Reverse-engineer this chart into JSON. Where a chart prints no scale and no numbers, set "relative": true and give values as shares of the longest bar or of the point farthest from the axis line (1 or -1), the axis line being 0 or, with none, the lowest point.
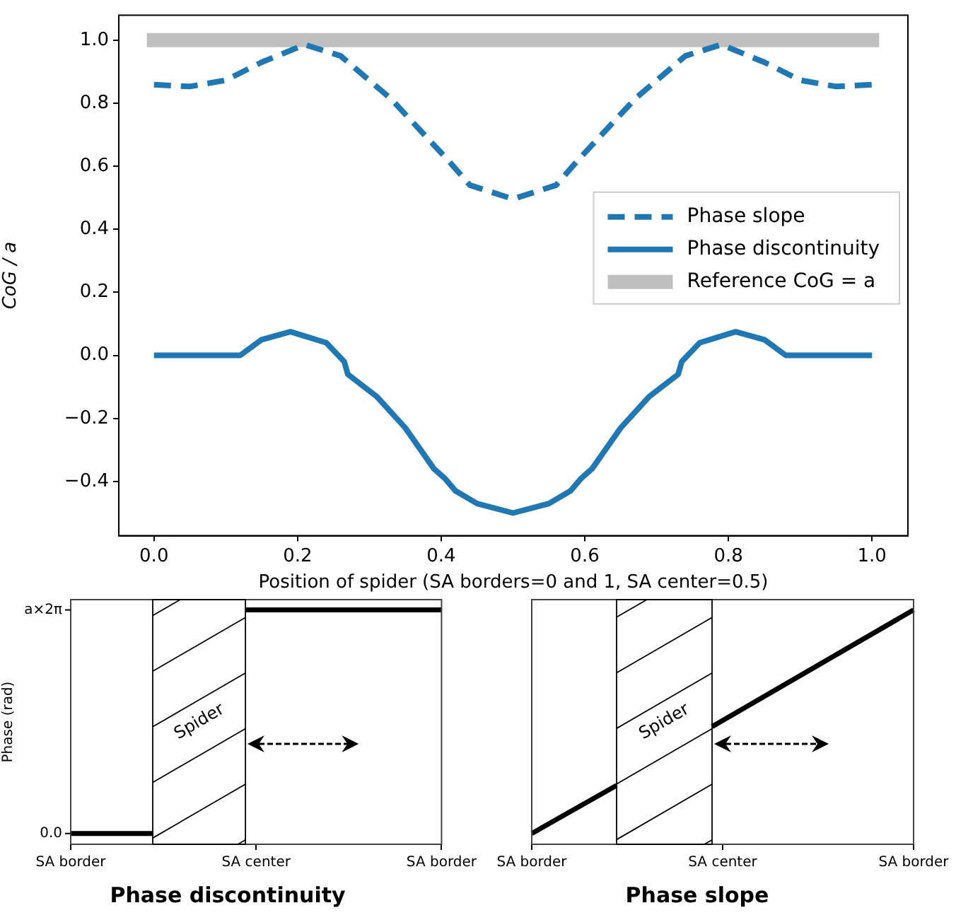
{
  "chart_data": [
    {
      "type": "line",
      "xlabel": "Position of spider (SA borders=0 and 1, SA center=0.5)",
      "ylabel": "CoG / a",
      "xlim": [
        -0.049,
        1.05
      ],
      "ylim": [
        -0.572,
        1.079
      ],
      "xticks": [
        {
          "value": 0,
          "label": "0.0"
        },
        0.2,
        0.4,
        0.6,
        0.8,
        {
          "value": 1,
          "label": "1.0"
        }
      ],
      "yticks": [
        {
          "value": -0.4,
          "label": "−0.4"
        },
        {
          "value": -0.2,
          "label": "−0.2"
        },
        {
          "value": 0,
          "label": "0.0"
        },
        0.2,
        0.4,
        0.6,
        0.8,
        {
          "value": 1,
          "label": "1.0"
        }
      ],
      "grid": false,
      "legend": "right",
      "series": [
        {
          "name": "Phase slope",
          "color": "#1f77b4",
          "line_style": "dashed",
          "x": [
            0,
            0.05,
            0.1,
            0.15,
            0.21,
            0.26,
            0.33,
            0.41,
            0.44,
            0.5,
            0.56,
            0.59,
            0.67,
            0.74,
            0.79,
            0.85,
            0.9,
            0.95,
            1
          ],
          "values": [
            0.859,
            0.853,
            0.873,
            0.93,
            0.986,
            0.95,
            0.814,
            0.618,
            0.54,
            0.496,
            0.54,
            0.618,
            0.814,
            0.95,
            0.986,
            0.93,
            0.873,
            0.853,
            0.859
          ]
        },
        {
          "name": "Phase discontinuity",
          "color": "#1f77b4",
          "line_style": "solid",
          "x": [
            0,
            0.12,
            0.15,
            0.19,
            0.24,
            0.265,
            0.27,
            0.31,
            0.35,
            0.39,
            0.405,
            0.42,
            0.45,
            0.5,
            0.55,
            0.58,
            0.595,
            0.61,
            0.65,
            0.69,
            0.73,
            0.735,
            0.76,
            0.81,
            0.85,
            0.88,
            1
          ],
          "values": [
            0,
            0,
            0.05,
            0.075,
            0.04,
            -0.02,
            -0.06,
            -0.13,
            -0.23,
            -0.36,
            -0.39,
            -0.43,
            -0.47,
            -0.5,
            -0.47,
            -0.43,
            -0.39,
            -0.36,
            -0.23,
            -0.13,
            -0.06,
            -0.02,
            0.04,
            0.075,
            0.05,
            0,
            0
          ]
        },
        {
          "name": "Reference CoG = a",
          "color": "#bfbfbf",
          "line_style": "solid",
          "x": [
            -0.01,
            1.01
          ],
          "values": [
            1,
            1
          ]
        }
      ]
    },
    {
      "type": "line",
      "title": "Phase discontinuity",
      "ylabel": "Phase (rad)",
      "relative": true,
      "grid": false,
      "categories": [
        "SA border",
        null,
        null,
        null,
        null,
        null,
        null,
        null,
        null,
        null,
        null,
        null,
        null,
        null,
        null,
        null,
        null,
        null,
        "SA center",
        null,
        null,
        null,
        null,
        null,
        null,
        null,
        null,
        null,
        null,
        null,
        null,
        null,
        null,
        null,
        null,
        null,
        "SA border"
      ],
      "annotations": [
        "0.0",
        "a×2π",
        "Spider"
      ],
      "series": [
        {
          "color": "#000000",
          "line_style": "solid",
          "values": [
            0.046,
            0.046,
            0.046,
            0.046,
            0.046,
            0.046,
            0.046,
            0.046,
            0.046,
            null,
            null,
            null,
            null,
            null,
            null,
            null,
            null,
            1,
            1,
            1,
            1,
            1,
            1,
            1,
            1,
            1,
            1,
            1,
            1,
            1,
            1,
            1,
            1,
            1,
            1,
            1,
            1
          ]
        }
      ]
    },
    {
      "type": "line",
      "title": "Phase slope",
      "relative": true,
      "grid": false,
      "categories": [
        "SA border",
        null,
        null,
        null,
        null,
        null,
        null,
        null,
        null,
        null,
        null,
        null,
        null,
        null,
        null,
        null,
        null,
        null,
        "SA center",
        null,
        null,
        null,
        null,
        null,
        null,
        null,
        null,
        null,
        null,
        null,
        null,
        null,
        null,
        null,
        null,
        null,
        "SA border"
      ],
      "annotations": [
        "Spider"
      ],
      "series": [
        {
          "color": "#000000",
          "line_style": "solid",
          "values": [
            0.046,
            null,
            null,
            null,
            null,
            null,
            null,
            null,
            0.251,
            null,
            null,
            null,
            null,
            null,
            null,
            null,
            null,
            null,
            null,
            null,
            null,
            null,
            null,
            null,
            null,
            null,
            null,
            null,
            null,
            null,
            null,
            null,
            null,
            null,
            null,
            null,
            null
          ]
        },
        {
          "color": "#000000",
          "line_style": "solid",
          "values": [
            null,
            null,
            null,
            null,
            null,
            null,
            null,
            null,
            null,
            null,
            null,
            null,
            null,
            null,
            null,
            null,
            null,
            0.502,
            null,
            null,
            null,
            null,
            null,
            null,
            null,
            null,
            null,
            null,
            null,
            null,
            null,
            null,
            null,
            null,
            null,
            null,
            1
          ]
        }
      ]
    }
  ]
}
